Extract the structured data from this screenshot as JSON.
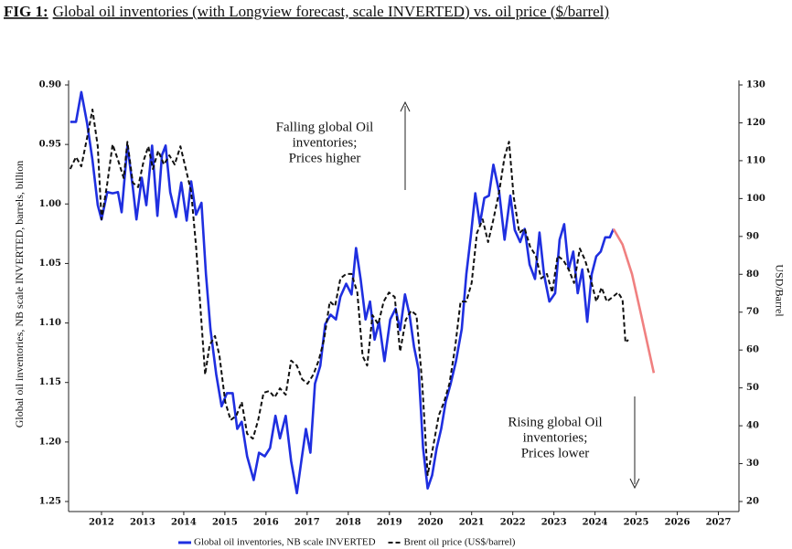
{
  "chart_data": {
    "type": "line",
    "figure_label": "FIG 1:",
    "title": "Global oil inventories (with Longview forecast, scale INVERTED) vs. oil price ($/barrel)",
    "ylabel": "Global oil inventories, NB scale INVERTED, barrels, billion",
    "y2label": "USD/Barrel",
    "xlim": [
      2011.2,
      2027.5
    ],
    "xticks": [
      2012,
      2013,
      2014,
      2015,
      2016,
      2017,
      2018,
      2019,
      2020,
      2021,
      2022,
      2023,
      2024,
      2025,
      2026,
      2027
    ],
    "ylim": [
      0.9,
      1.25
    ],
    "y_inverted": true,
    "yticks": [
      {
        "value": 0.9,
        "label": "0.90"
      },
      {
        "value": 0.95,
        "label": "0.95"
      },
      {
        "value": 1.0,
        "label": "1.00"
      },
      {
        "value": 1.05,
        "label": "1.05"
      },
      {
        "value": 1.1,
        "label": "1.10"
      },
      {
        "value": 1.15,
        "label": "1.15"
      },
      {
        "value": 1.2,
        "label": "1.20"
      },
      {
        "value": 1.25,
        "label": "1.25"
      }
    ],
    "y2lim": [
      20,
      130
    ],
    "y2ticks": [
      20,
      30,
      40,
      50,
      60,
      70,
      80,
      90,
      100,
      110,
      120,
      130
    ],
    "grid": false,
    "legend": "bottom",
    "annotations": [
      [
        "Falling global Oil",
        "inventories;",
        "Prices higher"
      ],
      [
        "Rising global Oil",
        "inventories;",
        "Prices lower"
      ]
    ],
    "series": [
      {
        "name": "Global oil inventories, NB scale INVERTED",
        "color": "#1f2fe0",
        "dash": false,
        "x": [
          2011.24,
          2011.38,
          2011.51,
          2011.65,
          2011.78,
          2011.91,
          2012.0,
          2012.14,
          2012.27,
          2012.4,
          2012.49,
          2012.63,
          2012.76,
          2012.85,
          2012.98,
          2013.09,
          2013.23,
          2013.36,
          2013.47,
          2013.56,
          2013.67,
          2013.81,
          2013.94,
          2014.07,
          2014.18,
          2014.3,
          2014.43,
          2014.54,
          2014.65,
          2014.79,
          2014.92,
          2015.05,
          2015.19,
          2015.3,
          2015.41,
          2015.54,
          2015.7,
          2015.83,
          2015.97,
          2016.1,
          2016.23,
          2016.34,
          2016.48,
          2016.61,
          2016.75,
          2016.86,
          2016.97,
          2017.08,
          2017.19,
          2017.32,
          2017.44,
          2017.57,
          2017.7,
          2017.81,
          2017.95,
          2018.08,
          2018.19,
          2018.3,
          2018.42,
          2018.53,
          2018.64,
          2018.75,
          2018.88,
          2019.02,
          2019.15,
          2019.26,
          2019.38,
          2019.49,
          2019.6,
          2019.71,
          2019.82,
          2019.93,
          2020.04,
          2020.15,
          2020.26,
          2020.37,
          2020.49,
          2020.62,
          2020.76,
          2020.87,
          2020.98,
          2021.09,
          2021.2,
          2021.31,
          2021.42,
          2021.53,
          2021.67,
          2021.8,
          2021.94,
          2022.05,
          2022.18,
          2022.29,
          2022.41,
          2022.54,
          2022.65,
          2022.76,
          2022.89,
          2023.03,
          2023.14,
          2023.25,
          2023.36,
          2023.47,
          2023.58,
          2023.69,
          2023.81,
          2023.92,
          2024.03,
          2024.14,
          2024.25,
          2024.36,
          2024.45
        ],
        "values": [
          0.931,
          0.931,
          0.906,
          0.932,
          0.963,
          1.001,
          1.013,
          0.99,
          0.991,
          0.99,
          1.007,
          0.951,
          0.986,
          1.013,
          0.978,
          1.001,
          0.951,
          1.01,
          0.959,
          0.951,
          0.99,
          1.011,
          0.982,
          1.014,
          0.981,
          1.009,
          0.999,
          1.059,
          1.105,
          1.143,
          1.17,
          1.159,
          1.159,
          1.189,
          1.183,
          1.212,
          1.232,
          1.209,
          1.212,
          1.205,
          1.178,
          1.197,
          1.178,
          1.216,
          1.243,
          1.216,
          1.189,
          1.209,
          1.151,
          1.136,
          1.101,
          1.093,
          1.097,
          1.078,
          1.067,
          1.076,
          1.037,
          1.063,
          1.097,
          1.082,
          1.114,
          1.099,
          1.132,
          1.097,
          1.088,
          1.106,
          1.076,
          1.093,
          1.12,
          1.139,
          1.205,
          1.239,
          1.228,
          1.205,
          1.189,
          1.166,
          1.151,
          1.132,
          1.105,
          1.059,
          1.027,
          0.991,
          1.017,
          0.995,
          0.993,
          0.967,
          0.99,
          1.03,
          0.993,
          1.022,
          1.032,
          1.021,
          1.051,
          1.063,
          1.024,
          1.059,
          1.082,
          1.075,
          1.03,
          1.017,
          1.055,
          1.04,
          1.075,
          1.055,
          1.099,
          1.059,
          1.044,
          1.04,
          1.028,
          1.028,
          1.021
        ]
      },
      {
        "name": "Brent oil price (US$/barrel)",
        "color": "#111111",
        "dash": true,
        "axis": "y2",
        "x": [
          2011.24,
          2011.38,
          2011.51,
          2011.65,
          2011.78,
          2011.91,
          2012.0,
          2012.14,
          2012.27,
          2012.4,
          2012.54,
          2012.63,
          2012.76,
          2012.89,
          2013.03,
          2013.14,
          2013.25,
          2013.38,
          2013.52,
          2013.65,
          2013.78,
          2013.92,
          2014.05,
          2014.18,
          2014.3,
          2014.41,
          2014.52,
          2014.63,
          2014.76,
          2014.87,
          2015.01,
          2015.14,
          2015.28,
          2015.41,
          2015.54,
          2015.68,
          2015.81,
          2015.94,
          2016.08,
          2016.21,
          2016.34,
          2016.48,
          2016.61,
          2016.75,
          2016.88,
          2017.01,
          2017.15,
          2017.28,
          2017.41,
          2017.55,
          2017.68,
          2017.81,
          2017.95,
          2018.08,
          2018.22,
          2018.35,
          2018.46,
          2018.59,
          2018.73,
          2018.86,
          2018.99,
          2019.13,
          2019.26,
          2019.4,
          2019.53,
          2019.66,
          2019.8,
          2019.93,
          2020.06,
          2020.2,
          2020.33,
          2020.46,
          2020.6,
          2020.73,
          2020.87,
          2021.0,
          2021.13,
          2021.27,
          2021.4,
          2021.53,
          2021.67,
          2021.8,
          2021.91,
          2022.02,
          2022.16,
          2022.29,
          2022.42,
          2022.56,
          2022.69,
          2022.83,
          2022.96,
          2023.09,
          2023.23,
          2023.36,
          2023.49,
          2023.63,
          2023.76,
          2023.89,
          2024.03,
          2024.16,
          2024.29,
          2024.43,
          2024.56,
          2024.67,
          2024.74,
          2024.81
        ],
        "values": [
          107.8,
          111,
          108.5,
          116,
          123.5,
          113.8,
          94.5,
          104,
          114.3,
          110.2,
          105.4,
          115,
          104.2,
          103,
          110.2,
          113.8,
          107.8,
          112.6,
          109,
          111.4,
          109,
          113.8,
          107.8,
          101.8,
          87.3,
          70.4,
          53.5,
          61.3,
          63.7,
          58.4,
          46.3,
          41.5,
          42.7,
          46.3,
          37.9,
          36.6,
          41.5,
          48.7,
          49.2,
          47.5,
          49.9,
          48.2,
          57.2,
          55.9,
          52.3,
          51.1,
          53.5,
          57.2,
          62.7,
          72.8,
          71.6,
          78.9,
          80.1,
          80.1,
          75.2,
          58.4,
          55.9,
          69.2,
          66.8,
          72.8,
          75.2,
          74,
          59.6,
          68,
          70.4,
          69.2,
          51.1,
          27,
          34.2,
          42.7,
          46.3,
          51.1,
          60.8,
          72.8,
          72.8,
          77.7,
          90.9,
          94.5,
          88.5,
          94.5,
          101.8,
          111,
          115,
          100.6,
          90.9,
          92.1,
          87.3,
          84.9,
          78.9,
          80.1,
          75.2,
          84.9,
          83.7,
          81.3,
          77.7,
          86.8,
          83.7,
          78.9,
          72.8,
          76.5,
          72.8,
          74,
          75.2,
          73.3,
          62,
          62.7
        ]
      },
      {
        "color": "#f08080",
        "dash": false,
        "x": [
          2024.45,
          2024.67,
          2024.9,
          2025.12,
          2025.43
        ],
        "values": [
          1.021,
          1.034,
          1.059,
          1.093,
          1.142
        ]
      }
    ]
  }
}
